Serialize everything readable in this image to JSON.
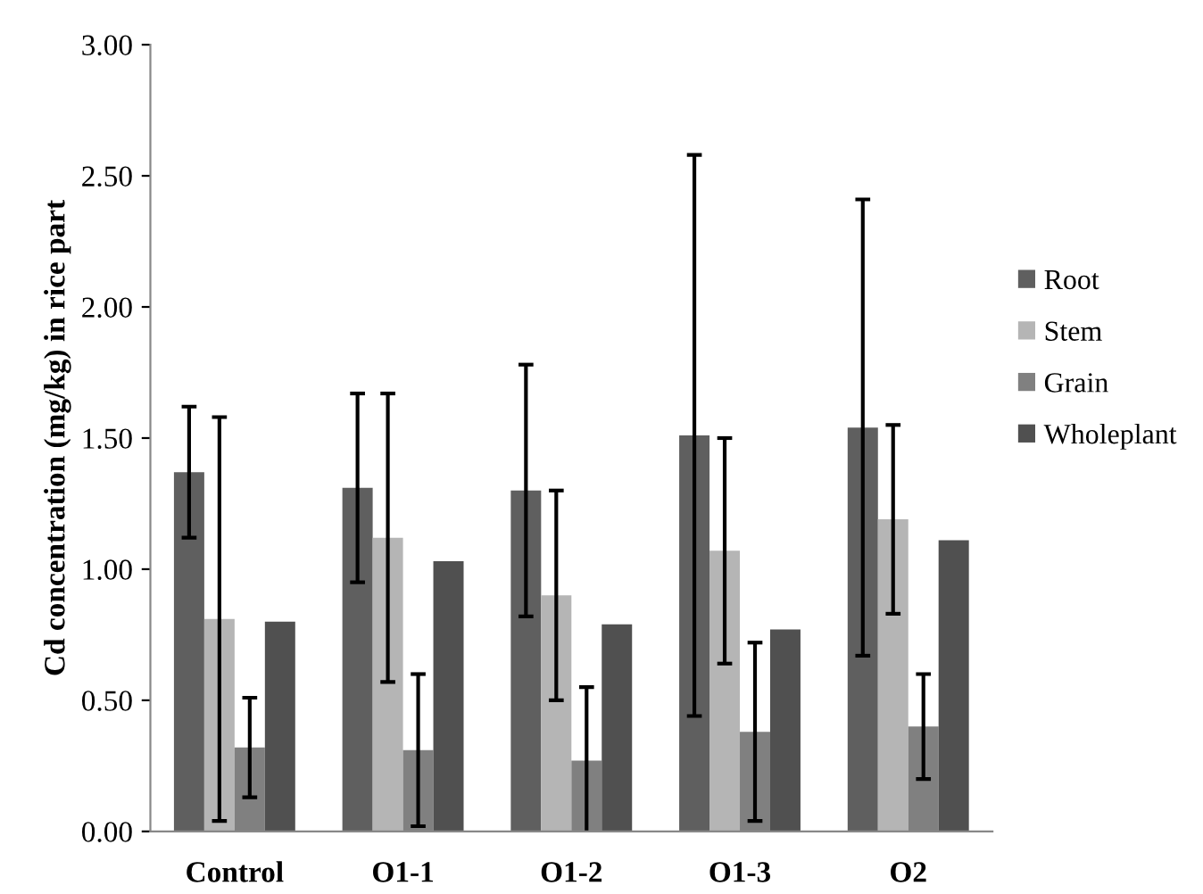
{
  "chart_data": {
    "type": "bar",
    "ylabel": "Cd concentration (mg/kg) in rice part",
    "categories": [
      "Control",
      "O1-1",
      "O1-2",
      "O1-3",
      "O2"
    ],
    "series": [
      {
        "name": "Root",
        "color": "#5f5f5f",
        "values": [
          1.37,
          1.31,
          1.3,
          1.51,
          1.54
        ],
        "errors": [
          0.25,
          0.36,
          0.48,
          1.07,
          0.87
        ]
      },
      {
        "name": "Stem",
        "color": "#b5b5b5",
        "values": [
          0.81,
          1.12,
          0.9,
          1.07,
          1.19
        ],
        "errors": [
          0.77,
          0.55,
          0.4,
          0.43,
          0.36
        ]
      },
      {
        "name": "Grain",
        "color": "#808080",
        "values": [
          0.32,
          0.31,
          0.27,
          0.38,
          0.4
        ],
        "errors": [
          0.19,
          0.29,
          0.28,
          0.34,
          0.2
        ]
      },
      {
        "name": "Wholeplant",
        "color": "#505050",
        "values": [
          0.8,
          1.03,
          0.79,
          0.77,
          1.11
        ]
      }
    ],
    "ylim": [
      0,
      3
    ],
    "yticks": [
      {
        "value": 0,
        "label": "0.00"
      },
      {
        "value": 0.5,
        "label": "0.50"
      },
      {
        "value": 1,
        "label": "1.00"
      },
      {
        "value": 1.5,
        "label": "1.50"
      },
      {
        "value": 2,
        "label": "2.00"
      },
      {
        "value": 2.5,
        "label": "2.50"
      },
      {
        "value": 3,
        "label": "3.00"
      }
    ],
    "grid": false,
    "legend": "right"
  }
}
